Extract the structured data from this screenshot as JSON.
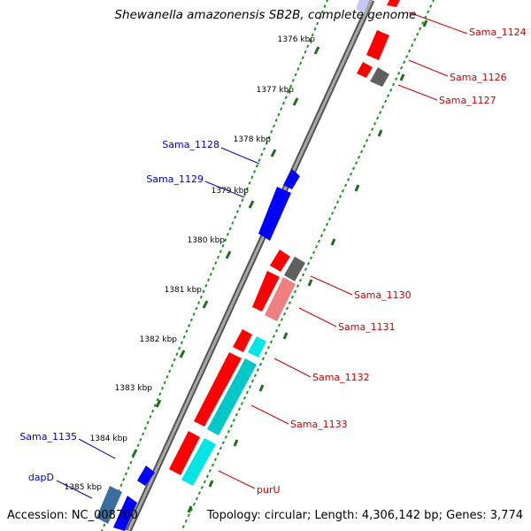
{
  "title": "Shewanella amazonensis SB2B, complete genome",
  "footer": {
    "accession": "Accession: NC_008700",
    "summary": "Topology: circular; Length: 4,306,142 bp; Genes: 3,774"
  },
  "colors": {
    "backbone": "#7f7f7f",
    "tick_dots": "#1c8f1c",
    "tick_major": "#1f6b1f",
    "forward_gene": "#ff0000",
    "forward_gene_light": "#f08080",
    "reverse_gene": "#0000ff",
    "reverse_gene_steel": "#3a6e9e",
    "cyan_gene": "#00e5e5",
    "gray_gene": "#5a5a5a",
    "forward_label": "#cc0000",
    "reverse_label": "#0000cc"
  },
  "scale_labels": [
    "1376 kbp",
    "1377 kbp",
    "1378 kbp",
    "1379 kbp",
    "1380 kbp",
    "1381 kbp",
    "1382 kbp",
    "1383 kbp",
    "1384 kbp",
    "1385 kbp"
  ],
  "forward_labels": [
    "Sama_1124",
    "Sama_1126",
    "Sama_1127",
    "Sama_1130",
    "Sama_1131",
    "Sama_1132",
    "Sama_1133",
    "purU"
  ],
  "reverse_labels": [
    "Sama_1128",
    "Sama_1129",
    "Sama_1135",
    "dapD"
  ]
}
